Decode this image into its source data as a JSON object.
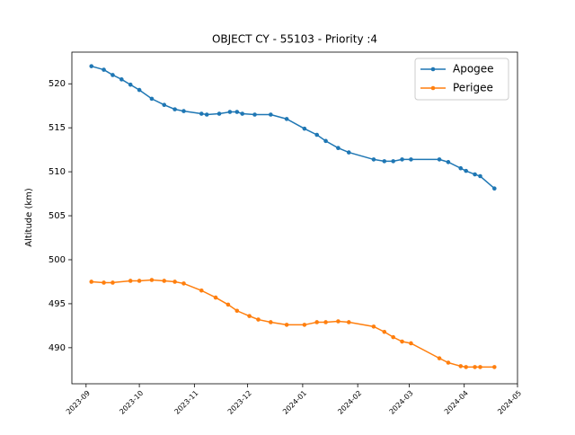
{
  "chart_data": {
    "type": "line",
    "title": "OBJECT CY - 55103 - Priority :4",
    "y_label": "Altitude (km)",
    "xlim": [
      "2023-08-24",
      "2024-05-01"
    ],
    "xticks": [
      "2023-09",
      "2023-10",
      "2023-11",
      "2023-12",
      "2024-01",
      "2024-02",
      "2024-03",
      "2024-04",
      "2024-05"
    ],
    "ylim": [
      485.9,
      523.6
    ],
    "yticks": [
      490,
      495,
      500,
      505,
      510,
      515,
      520
    ],
    "legend": "upper right",
    "grid": false,
    "series": [
      {
        "name": "Apogee",
        "color": "#1f77b4",
        "x": [
          "2023-09-04",
          "2023-09-11",
          "2023-09-16",
          "2023-09-21",
          "2023-09-26",
          "2023-10-01",
          "2023-10-08",
          "2023-10-15",
          "2023-10-21",
          "2023-10-26",
          "2023-11-05",
          "2023-11-08",
          "2023-11-15",
          "2023-11-21",
          "2023-11-25",
          "2023-11-28",
          "2023-12-05",
          "2023-12-14",
          "2023-12-23",
          "2024-01-02",
          "2024-01-09",
          "2024-01-14",
          "2024-01-21",
          "2024-01-27",
          "2024-02-10",
          "2024-02-16",
          "2024-02-21",
          "2024-02-26",
          "2024-03-02",
          "2024-03-18",
          "2024-03-23",
          "2024-03-30",
          "2024-04-02",
          "2024-04-07",
          "2024-04-10",
          "2024-04-18"
        ],
        "values": [
          522.0,
          521.6,
          521.0,
          520.5,
          519.9,
          519.3,
          518.3,
          517.6,
          517.1,
          516.9,
          516.6,
          516.5,
          516.6,
          516.8,
          516.8,
          516.6,
          516.5,
          516.5,
          516.0,
          514.9,
          514.2,
          513.5,
          512.7,
          512.2,
          511.4,
          511.2,
          511.2,
          511.4,
          511.4,
          511.4,
          511.1,
          510.4,
          510.1,
          509.7,
          509.5,
          508.1
        ]
      },
      {
        "name": "Perigee",
        "color": "#ff7f0e",
        "x": [
          "2023-09-04",
          "2023-09-11",
          "2023-09-16",
          "2023-09-26",
          "2023-10-01",
          "2023-10-08",
          "2023-10-15",
          "2023-10-21",
          "2023-10-26",
          "2023-11-05",
          "2023-11-13",
          "2023-11-20",
          "2023-11-25",
          "2023-12-02",
          "2023-12-07",
          "2023-12-14",
          "2023-12-23",
          "2024-01-02",
          "2024-01-09",
          "2024-01-14",
          "2024-01-21",
          "2024-01-27",
          "2024-02-10",
          "2024-02-16",
          "2024-02-21",
          "2024-02-26",
          "2024-03-02",
          "2024-03-18",
          "2024-03-23",
          "2024-03-30",
          "2024-04-02",
          "2024-04-07",
          "2024-04-10",
          "2024-04-18"
        ],
        "values": [
          497.5,
          497.4,
          497.4,
          497.6,
          497.6,
          497.7,
          497.6,
          497.5,
          497.3,
          496.5,
          495.7,
          494.9,
          494.2,
          493.6,
          493.2,
          492.9,
          492.6,
          492.6,
          492.9,
          492.9,
          493.0,
          492.9,
          492.4,
          491.8,
          491.2,
          490.7,
          490.5,
          488.8,
          488.3,
          487.9,
          487.8,
          487.8,
          487.8,
          487.8
        ]
      }
    ]
  }
}
